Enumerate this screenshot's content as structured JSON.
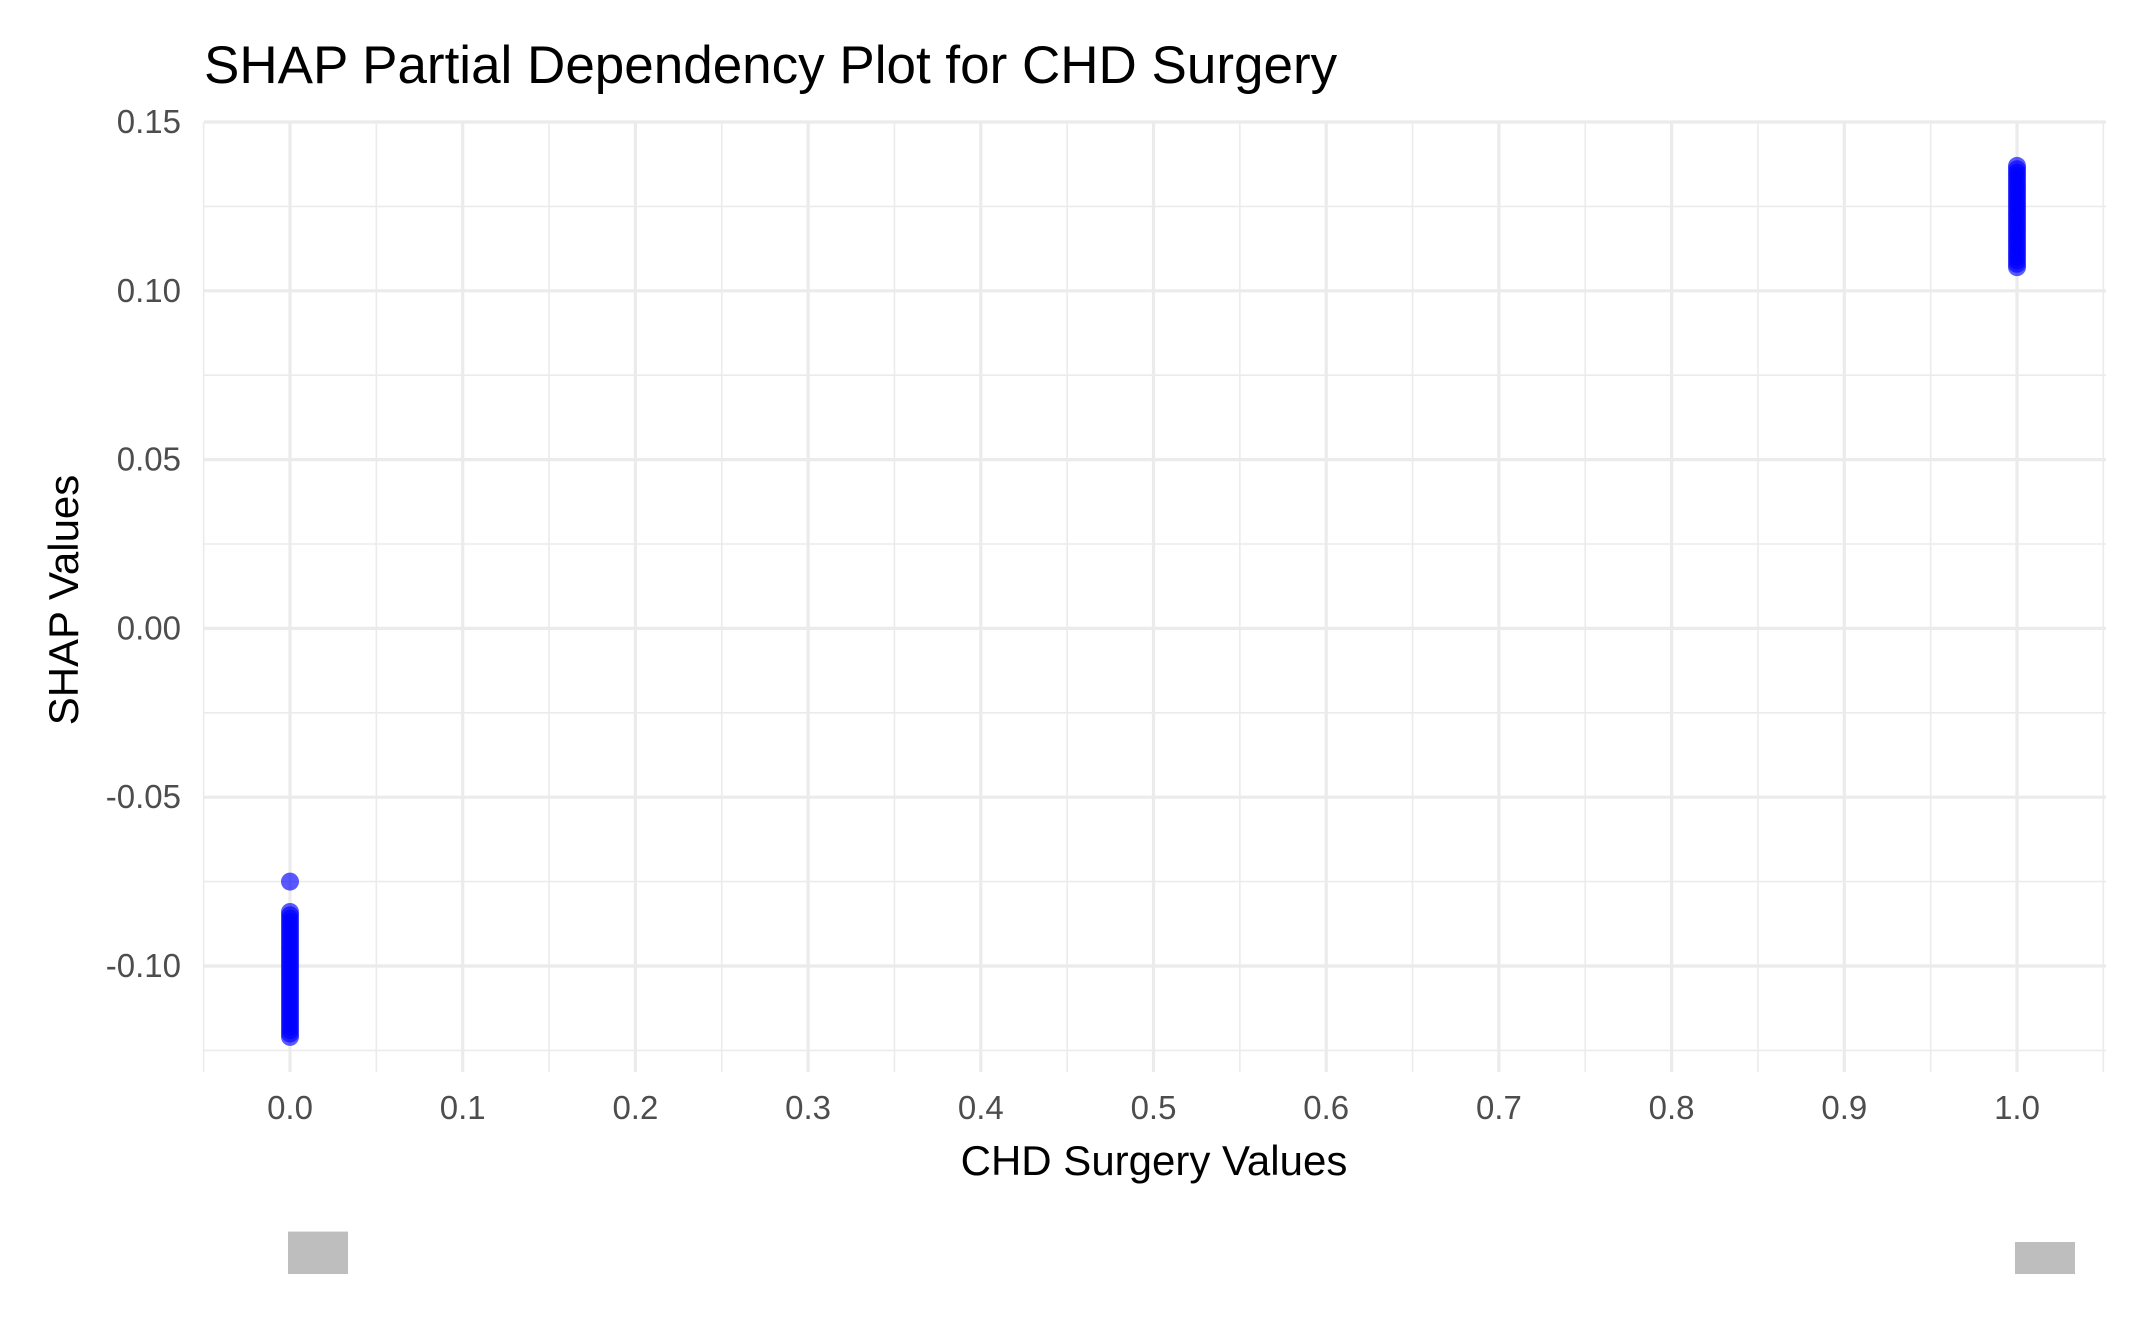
{
  "chart_data": {
    "type": "scatter",
    "title": "SHAP Partial Dependency Plot for CHD Surgery",
    "xlabel": "CHD Surgery Values",
    "ylabel": "SHAP Values",
    "xlim": [
      -0.05,
      1.05
    ],
    "ylim": [
      -0.13,
      0.15
    ],
    "x_ticks": [
      "0.0",
      "0.1",
      "0.2",
      "0.3",
      "0.4",
      "0.5",
      "0.6",
      "0.7",
      "0.8",
      "0.9",
      "1.0"
    ],
    "x_tick_values": [
      0,
      0.1,
      0.2,
      0.3,
      0.4,
      0.5,
      0.6,
      0.7,
      0.8,
      0.9,
      1.0
    ],
    "y_ticks": [
      "0.15",
      "0.10",
      "0.05",
      "0.00",
      "-0.05",
      "-0.10"
    ],
    "y_tick_values": [
      0.15,
      0.1,
      0.05,
      0.0,
      -0.05,
      -0.1
    ],
    "grid": true,
    "point_color": "#0000ff",
    "series": [
      {
        "x": [
          0,
          0,
          0,
          0,
          0,
          0,
          0,
          0,
          0,
          0,
          0,
          0,
          0,
          0,
          0,
          0,
          0,
          0,
          0,
          0,
          0,
          0,
          0,
          0,
          0,
          0,
          0,
          0,
          0,
          0,
          0,
          0,
          0,
          0,
          0,
          0,
          0,
          0,
          0
        ],
        "y": [
          -0.075,
          -0.084,
          -0.085,
          -0.086,
          -0.087,
          -0.088,
          -0.089,
          -0.09,
          -0.091,
          -0.092,
          -0.093,
          -0.094,
          -0.095,
          -0.096,
          -0.097,
          -0.098,
          -0.099,
          -0.1,
          -0.101,
          -0.102,
          -0.103,
          -0.104,
          -0.105,
          -0.106,
          -0.107,
          -0.108,
          -0.109,
          -0.11,
          -0.111,
          -0.112,
          -0.113,
          -0.114,
          -0.115,
          -0.116,
          -0.117,
          -0.118,
          -0.119,
          -0.12,
          -0.121
        ]
      },
      {
        "x": [
          1,
          1,
          1,
          1,
          1,
          1,
          1,
          1,
          1,
          1,
          1,
          1,
          1,
          1,
          1,
          1,
          1,
          1,
          1,
          1,
          1,
          1,
          1,
          1,
          1,
          1,
          1,
          1,
          1,
          1,
          1
        ],
        "y": [
          0.137,
          0.136,
          0.135,
          0.134,
          0.133,
          0.132,
          0.131,
          0.13,
          0.129,
          0.128,
          0.127,
          0.126,
          0.125,
          0.124,
          0.123,
          0.122,
          0.121,
          0.12,
          0.119,
          0.118,
          0.117,
          0.116,
          0.115,
          0.114,
          0.113,
          0.112,
          0.111,
          0.11,
          0.109,
          0.108,
          0.107
        ]
      }
    ],
    "marginal_histogram": {
      "bins": [
        {
          "x": 0.0,
          "count": 53
        },
        {
          "x": 1.0,
          "count": 40
        }
      ]
    }
  }
}
